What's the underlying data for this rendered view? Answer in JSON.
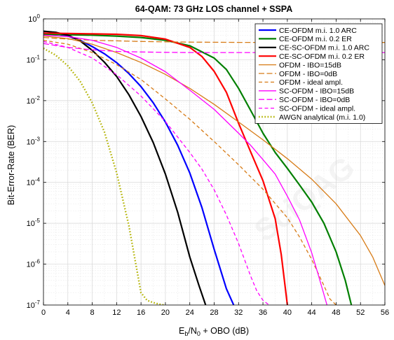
{
  "chart_data": {
    "type": "line",
    "title": "64-QAM: 73 GHz LOS channel + SSPA",
    "xlabel_main": "E",
    "xlabel_sub1": "b",
    "xlabel_mid": "/N",
    "xlabel_sub2": "0",
    "xlabel_tail": " + OBO (dB)",
    "ylabel": "Bit-Error-Rate (BER)",
    "xlim": [
      0,
      56
    ],
    "ylim": [
      1e-07,
      1
    ],
    "yscale": "log",
    "grid": true,
    "legend_position": "top-right",
    "x_ticks": [
      0,
      4,
      8,
      12,
      16,
      20,
      24,
      28,
      32,
      36,
      40,
      44,
      48,
      52,
      56
    ],
    "x_tick_labels": [
      "0",
      "4",
      "8",
      "12",
      "16",
      "20",
      "24",
      "28",
      "32",
      "36",
      "40",
      "44",
      "48",
      "52",
      "56"
    ],
    "y_ticks": [
      {
        "value": 1e-07,
        "base": "10",
        "exp": "-7"
      },
      {
        "value": 1e-06,
        "base": "10",
        "exp": "-6"
      },
      {
        "value": 1e-05,
        "base": "10",
        "exp": "-5"
      },
      {
        "value": 0.0001,
        "base": "10",
        "exp": "-4"
      },
      {
        "value": 0.001,
        "base": "10",
        "exp": "-3"
      },
      {
        "value": 0.01,
        "base": "10",
        "exp": "-2"
      },
      {
        "value": 0.1,
        "base": "10",
        "exp": "-1"
      },
      {
        "value": 1,
        "base": "10",
        "exp": "0"
      }
    ],
    "series": [
      {
        "name": "CE-OFDM m.i. 1.0 ARC",
        "color": "#0000ff",
        "dash": "solid",
        "width": 2.2,
        "x": [
          0,
          2,
          4,
          6,
          8,
          10,
          12,
          14,
          16,
          18,
          20,
          22,
          24,
          26,
          28,
          30,
          31.2
        ],
        "y": [
          0.45,
          0.43,
          0.38,
          0.3,
          0.21,
          0.14,
          0.085,
          0.046,
          0.022,
          0.0089,
          0.003,
          0.00082,
          0.00017,
          2.4e-05,
          2.3e-06,
          2.5e-07,
          1e-07
        ]
      },
      {
        "name": "CE-OFDM m.i. 0.2 ER",
        "color": "#007f00",
        "dash": "solid",
        "width": 2.2,
        "x": [
          0,
          4,
          8,
          12,
          16,
          20,
          24,
          28,
          30,
          32,
          34,
          36,
          38,
          40,
          42,
          44,
          46,
          48,
          49.5,
          50.5
        ],
        "y": [
          0.42,
          0.41,
          0.4,
          0.38,
          0.35,
          0.3,
          0.22,
          0.11,
          0.058,
          0.02,
          0.0057,
          0.0016,
          0.00054,
          0.00022,
          8.6e-05,
          3.3e-05,
          1e-05,
          2e-06,
          4e-07,
          1e-07
        ]
      },
      {
        "name": "CE-SC-OFDM m.i. 1.0 ARC",
        "color": "#000000",
        "dash": "solid",
        "width": 2.2,
        "x": [
          0,
          2,
          4,
          6,
          8,
          10,
          12,
          14,
          16,
          18,
          20,
          22,
          24,
          25.5,
          26.6
        ],
        "y": [
          0.5,
          0.47,
          0.4,
          0.29,
          0.17,
          0.087,
          0.039,
          0.014,
          0.0041,
          0.00095,
          0.00016,
          1.9e-05,
          1.5e-06,
          3e-07,
          1e-07
        ]
      },
      {
        "name": "CE-SC-OFDM m.i. 0.2 ER",
        "color": "#ff0000",
        "dash": "solid",
        "width": 2.2,
        "x": [
          0,
          4,
          8,
          12,
          16,
          20,
          24,
          26,
          28,
          30,
          32,
          34,
          36,
          38,
          39,
          40
        ],
        "y": [
          0.45,
          0.44,
          0.43,
          0.42,
          0.39,
          0.32,
          0.2,
          0.12,
          0.052,
          0.016,
          0.0028,
          0.00055,
          0.00011,
          1.3e-05,
          1.7e-06,
          1e-07
        ]
      },
      {
        "name": "OFDM - IBO=15dB",
        "color": "#d77b16",
        "dash": "solid",
        "width": 1.3,
        "x": [
          0,
          4,
          8,
          12,
          16,
          20,
          24,
          28,
          32,
          36,
          40,
          44,
          48,
          52,
          54,
          56
        ],
        "y": [
          0.38,
          0.33,
          0.24,
          0.15,
          0.086,
          0.044,
          0.02,
          0.0081,
          0.003,
          0.0011,
          0.00038,
          0.00012,
          3e-05,
          5e-06,
          1.5e-06,
          3e-07
        ]
      },
      {
        "name": "OFDM - IBO=0dB",
        "color": "#d77b16",
        "dash": "long-dash",
        "width": 1.3,
        "x": [
          0,
          4,
          8,
          12,
          16,
          20,
          24,
          28,
          32,
          36,
          40,
          44,
          48,
          52,
          56
        ],
        "y": [
          0.35,
          0.32,
          0.3,
          0.29,
          0.28,
          0.275,
          0.27,
          0.268,
          0.266,
          0.265,
          0.265,
          0.265,
          0.265,
          0.265,
          0.265
        ]
      },
      {
        "name": "OFDM - ideal ampl.",
        "color": "#d77b16",
        "dash": "dash",
        "width": 1.3,
        "x": [
          0,
          4,
          8,
          12,
          16,
          20,
          24,
          28,
          32,
          36,
          40,
          42,
          44,
          46,
          47,
          48
        ],
        "y": [
          0.3,
          0.24,
          0.15,
          0.076,
          0.033,
          0.011,
          0.0035,
          0.001,
          0.00027,
          6.8e-05,
          1.36e-05,
          4.6e-06,
          1.3e-06,
          3e-07,
          1.4e-07,
          1e-07
        ]
      },
      {
        "name": "SC-OFDM - IBO=15dB",
        "color": "#ff00ff",
        "dash": "solid",
        "width": 1.3,
        "x": [
          0,
          4,
          8,
          12,
          16,
          20,
          24,
          28,
          32,
          34,
          36,
          38,
          40,
          42,
          44,
          45,
          46.5
        ],
        "y": [
          0.4,
          0.37,
          0.3,
          0.2,
          0.11,
          0.051,
          0.018,
          0.0061,
          0.0016,
          0.0008,
          0.00036,
          0.00016,
          4.6e-05,
          1.2e-05,
          1.9e-06,
          6e-07,
          1e-07
        ]
      },
      {
        "name": "SC-OFDM - IBO=0dB",
        "color": "#ff00ff",
        "dash": "long-dash",
        "width": 1.3,
        "x": [
          0,
          4,
          8,
          12,
          16,
          20,
          24,
          28,
          32,
          36,
          40,
          44,
          48,
          52,
          56
        ],
        "y": [
          0.25,
          0.2,
          0.175,
          0.16,
          0.155,
          0.152,
          0.15,
          0.15,
          0.15,
          0.15,
          0.15,
          0.15,
          0.15,
          0.15,
          0.15
        ]
      },
      {
        "name": "SC-OFDM - ideal ampl.",
        "color": "#ff00ff",
        "dash": "dash",
        "width": 1.3,
        "x": [
          0,
          4,
          8,
          12,
          16,
          20,
          24,
          26,
          28,
          30,
          32,
          34,
          35,
          36,
          37
        ],
        "y": [
          0.28,
          0.2,
          0.11,
          0.043,
          0.013,
          0.0031,
          0.00054,
          0.00021,
          6.6e-05,
          1.6e-05,
          3.2e-06,
          5e-07,
          2.2e-07,
          1.3e-07,
          1e-07
        ]
      },
      {
        "name": "AWGN analytical (m.i. 1.0)",
        "color": "#b2b200",
        "dash": "dot",
        "width": 2.4,
        "x": [
          0,
          2,
          4,
          6,
          8,
          10,
          12,
          14,
          16,
          17,
          18,
          19,
          19.8
        ],
        "y": [
          0.19,
          0.13,
          0.071,
          0.03,
          0.0088,
          0.0017,
          0.00017,
          8.8e-06,
          2e-07,
          1.3e-07,
          1.15e-07,
          1.05e-07,
          1e-07
        ]
      }
    ]
  }
}
